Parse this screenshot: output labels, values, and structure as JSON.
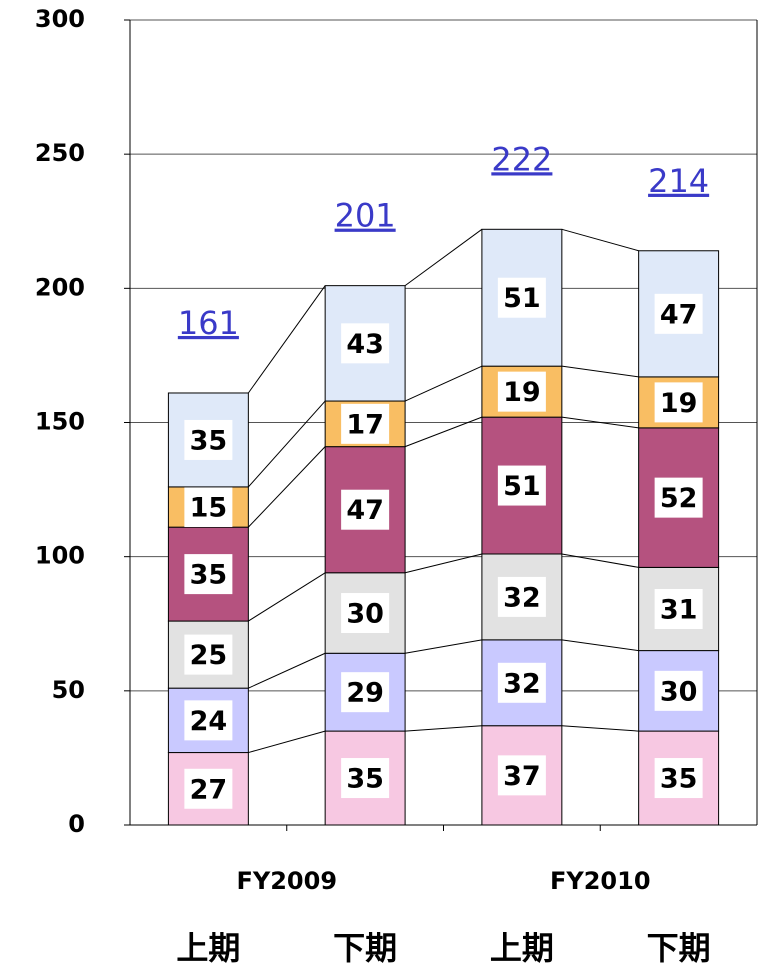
{
  "chart_data": {
    "type": "stacked_bar",
    "categories": [
      "上期",
      "下期",
      "上期",
      "下期"
    ],
    "groups": [
      "FY2009",
      "FY2010"
    ],
    "series": [
      {
        "color": "#f7c8e2",
        "values": [
          27,
          35,
          37,
          35
        ]
      },
      {
        "color": "#c9c9ff",
        "values": [
          24,
          29,
          32,
          30
        ]
      },
      {
        "color": "#e2e2e2",
        "values": [
          25,
          30,
          32,
          31
        ]
      },
      {
        "color": "#b5527f",
        "values": [
          35,
          47,
          51,
          52
        ]
      },
      {
        "color": "#f9be63",
        "values": [
          15,
          17,
          19,
          19
        ]
      },
      {
        "color": "#dfe9f9",
        "values": [
          35,
          43,
          51,
          47
        ]
      }
    ],
    "totals": [
      161,
      201,
      222,
      214
    ],
    "total_color": "#3a3ac8",
    "ylim": [
      0,
      300
    ],
    "yticks": [
      0,
      50,
      100,
      150,
      200,
      250,
      300
    ],
    "grid": true
  }
}
